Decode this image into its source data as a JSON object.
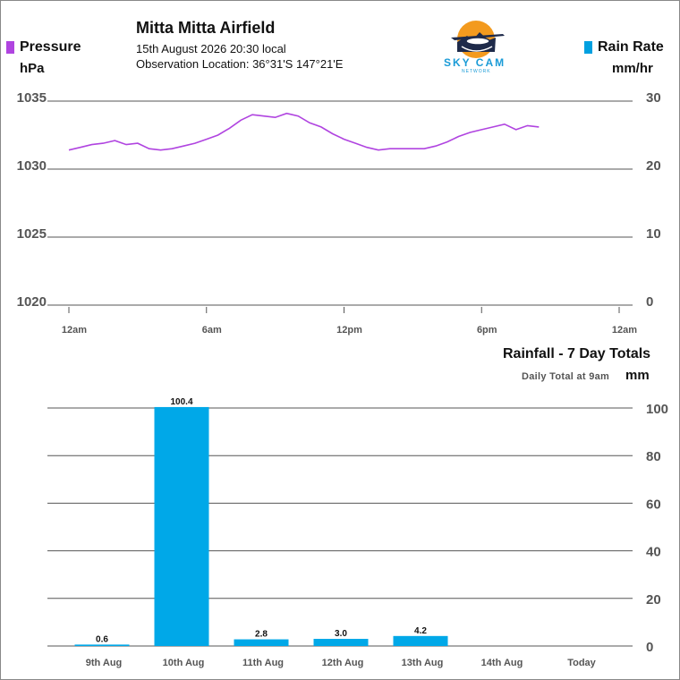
{
  "header": {
    "station": "Mitta Mitta Airfield",
    "datetime": "15th August 2026  20:30 local",
    "location": "Observation Location: 36°31'S 147°21'E"
  },
  "logo": {
    "name": "SKY CAM",
    "tagline": "NETWORK"
  },
  "pressure_legend": {
    "label": "Pressure",
    "unit": "hPa",
    "color": "#b044e0"
  },
  "rainrate_legend": {
    "label": "Rain Rate",
    "unit": "mm/hr",
    "color": "#00a0e0"
  },
  "rainfall_section": {
    "title": "Rainfall - 7 Day Totals",
    "note": "Daily Total at 9am",
    "unit": "mm"
  },
  "chart_data": [
    {
      "type": "line",
      "series": [
        {
          "name": "Pressure",
          "color": "#b044e0",
          "x": [
            0,
            0.5,
            1,
            1.5,
            2,
            2.5,
            3,
            3.5,
            4,
            4.5,
            5,
            5.5,
            6,
            6.5,
            7,
            7.5,
            8,
            8.5,
            9,
            9.5,
            10,
            10.5,
            11,
            11.5,
            12,
            12.5,
            13,
            13.5,
            14,
            14.5,
            15,
            15.5,
            16,
            16.5,
            17,
            17.5,
            18,
            18.5,
            19,
            19.5,
            20,
            20.5
          ],
          "y": [
            1031.4,
            1031.6,
            1031.8,
            1031.9,
            1032.1,
            1031.8,
            1031.9,
            1031.5,
            1031.4,
            1031.5,
            1031.7,
            1031.9,
            1032.2,
            1032.5,
            1033.0,
            1033.6,
            1034.0,
            1033.9,
            1033.8,
            1034.1,
            1033.9,
            1033.4,
            1033.1,
            1032.6,
            1032.2,
            1031.9,
            1031.6,
            1031.4,
            1031.5,
            1031.5,
            1031.5,
            1031.5,
            1031.7,
            1032.0,
            1032.4,
            1032.7,
            1032.9,
            1033.1,
            1033.3,
            1032.9,
            1033.2,
            1033.1
          ]
        }
      ],
      "x_tick_labels": [
        "12am",
        "6am",
        "12pm",
        "6pm",
        "12am"
      ],
      "xlim": [
        0,
        24
      ],
      "ylim_left": [
        1020,
        1035
      ],
      "y_left_ticks": [
        1035,
        1030,
        1025,
        1020
      ],
      "ylim_right": [
        0,
        30
      ],
      "y_right_ticks": [
        30,
        20,
        10,
        0
      ],
      "grid": true
    },
    {
      "type": "bar",
      "categories": [
        "9th Aug",
        "10th Aug",
        "11th Aug",
        "12th Aug",
        "13th Aug",
        "14th Aug",
        "Today"
      ],
      "values": [
        0.6,
        100.4,
        2.8,
        3.0,
        4.2,
        null,
        null
      ],
      "value_labels": [
        "0.6",
        "100.4",
        "2.8",
        "3.0",
        "4.2",
        "",
        ""
      ],
      "color": "#00a8e8",
      "ylim": [
        0,
        100
      ],
      "y_ticks": [
        100,
        80,
        60,
        40,
        20,
        0
      ],
      "grid": true
    }
  ]
}
